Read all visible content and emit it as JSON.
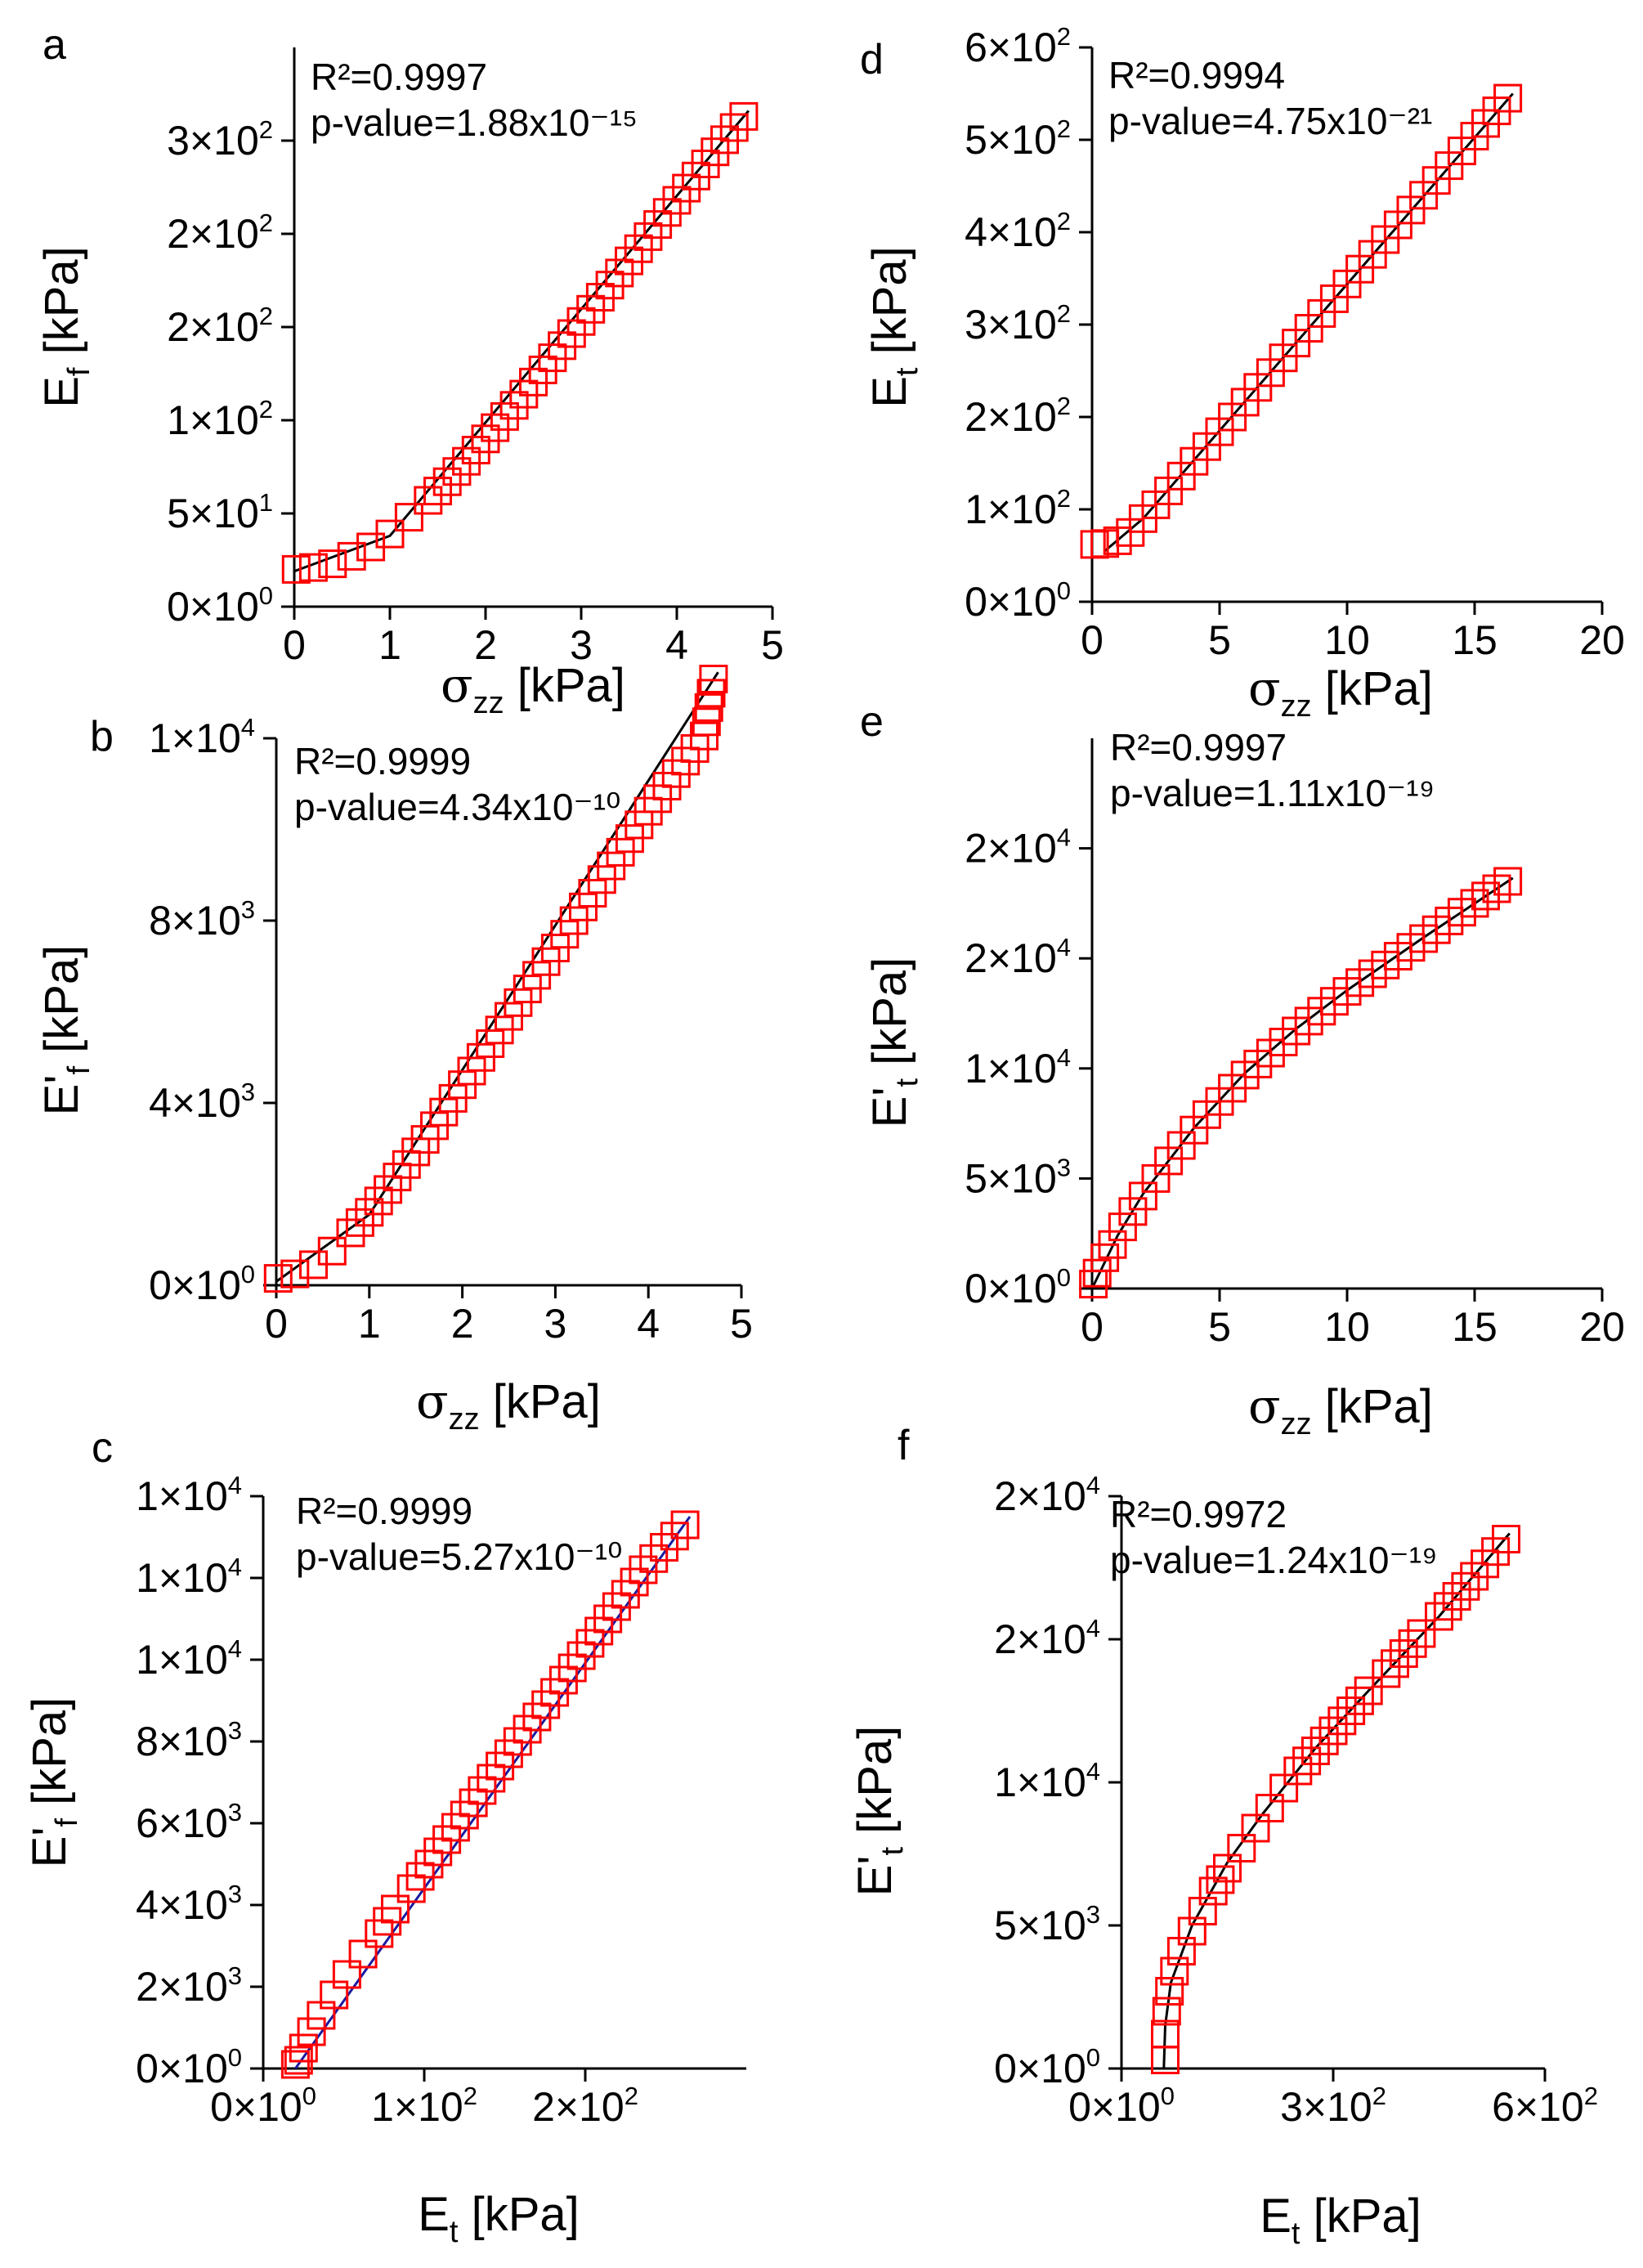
{
  "chart_data": [
    {
      "panel": "a",
      "type": "scatter",
      "xlabel": {
        "main": "σ",
        "sub": "zz",
        "unit": " [kPa]"
      },
      "ylabel": {
        "main": "E",
        "sub": "f",
        "unit": " [kPa]"
      },
      "xlim": [
        0,
        5
      ],
      "ylim": [
        0,
        300
      ],
      "xticks": [
        {
          "v": 0,
          "t": "0"
        },
        {
          "v": 1,
          "t": "1"
        },
        {
          "v": 2,
          "t": "2"
        },
        {
          "v": 3,
          "t": "3"
        },
        {
          "v": 4,
          "t": "4"
        },
        {
          "v": 5,
          "t": "5"
        }
      ],
      "yticks": [
        {
          "v": 0,
          "m": "0×10",
          "e": "0"
        },
        {
          "v": 50,
          "m": "5×10",
          "e": "1"
        },
        {
          "v": 100,
          "m": "1×10",
          "e": "2"
        },
        {
          "v": 150,
          "m": "2×10",
          "e": "2"
        },
        {
          "v": 200,
          "m": "2×10",
          "e": "2"
        },
        {
          "v": 250,
          "m": "3×10",
          "e": "2"
        }
      ],
      "r2": "R²=0.9997",
      "pvalue": "p-value=1.88x10⁻¹⁵",
      "x": [
        0.02,
        0.2,
        0.4,
        0.6,
        0.8,
        1.0,
        1.2,
        1.4,
        1.6,
        1.8,
        2.0,
        2.2,
        2.4,
        2.6,
        2.8,
        3.0,
        3.2,
        3.4,
        3.6,
        3.8,
        4.0,
        4.2,
        4.4,
        4.6,
        4.7
      ],
      "y": [
        20,
        21,
        23,
        27,
        32,
        39,
        48,
        57,
        67,
        78,
        90,
        102,
        114,
        127,
        140,
        153,
        166,
        179,
        192,
        205,
        218,
        231,
        244,
        257,
        263
      ],
      "fit": [
        [
          0,
          19
        ],
        [
          1,
          38
        ],
        [
          4.75,
          266
        ]
      ],
      "fit_color": "#000000"
    },
    {
      "panel": "b",
      "type": "scatter",
      "xlabel": {
        "main": "σ",
        "sub": "zz",
        "unit": " [kPa]"
      },
      "ylabel": {
        "main": "E'",
        "sub": "f",
        "unit": " [kPa]"
      },
      "xlim": [
        0,
        5
      ],
      "ylim": [
        0,
        12000
      ],
      "xticks": [
        {
          "v": 0,
          "t": "0"
        },
        {
          "v": 1,
          "t": "1"
        },
        {
          "v": 2,
          "t": "2"
        },
        {
          "v": 3,
          "t": "3"
        },
        {
          "v": 4,
          "t": "4"
        },
        {
          "v": 5,
          "t": "5"
        }
      ],
      "yticks": [
        {
          "v": 0,
          "m": "0×10",
          "e": "0"
        },
        {
          "v": 4000,
          "m": "4×10",
          "e": "3"
        },
        {
          "v": 8000,
          "m": "8×10",
          "e": "3"
        },
        {
          "v": 12000,
          "m": "1×10",
          "e": "4"
        }
      ],
      "r2": "R²=0.9999",
      "pvalue": "p-value=4.34x10⁻¹⁰",
      "x": [
        0.02,
        0.2,
        0.4,
        0.6,
        0.8,
        1.0,
        1.2,
        1.4,
        1.6,
        1.8,
        2.0,
        2.2,
        2.4,
        2.6,
        2.8,
        3.0,
        3.2,
        3.4,
        3.6,
        3.8,
        4.0,
        4.2,
        4.4,
        4.6,
        4.7
      ],
      "y": [
        150,
        250,
        450,
        750,
        1150,
        1600,
        2100,
        2650,
        3200,
        3800,
        4400,
        5000,
        5600,
        6200,
        6800,
        7400,
        8000,
        8600,
        9200,
        9800,
        10400,
        10950,
        11500,
        12050,
        13300
      ],
      "fit": [
        [
          0,
          80
        ],
        [
          1,
          1550
        ],
        [
          4.75,
          13450
        ]
      ],
      "fit_color": "#000000"
    },
    {
      "panel": "c",
      "type": "scatter",
      "xlabel": {
        "main": "E",
        "sub": "t",
        "unit": " [kPa]"
      },
      "ylabel": {
        "main": "E'",
        "sub": "f",
        "unit": " [kPa]"
      },
      "xlim": [
        0,
        300
      ],
      "ylim": [
        0,
        14000
      ],
      "xticks": [
        {
          "v": 0,
          "m": "0×10",
          "e": "0"
        },
        {
          "v": 100,
          "m": "1×10",
          "e": "2"
        },
        {
          "v": 200,
          "m": "2×10",
          "e": "2"
        }
      ],
      "yticks": [
        {
          "v": 0,
          "m": "0×10",
          "e": "0"
        },
        {
          "v": 2000,
          "m": "2×10",
          "e": "3"
        },
        {
          "v": 4000,
          "m": "4×10",
          "e": "3"
        },
        {
          "v": 6000,
          "m": "6×10",
          "e": "3"
        },
        {
          "v": 8000,
          "m": "8×10",
          "e": "3"
        },
        {
          "v": 10000,
          "m": "1×10",
          "e": "4"
        },
        {
          "v": 12000,
          "m": "1×10",
          "e": "4"
        },
        {
          "v": 14000,
          "m": "1×10",
          "e": "4"
        }
      ],
      "r2": "R²=0.9999",
      "pvalue": "p-value=5.27x10⁻¹⁰",
      "x": [
        20,
        22,
        25,
        30,
        36,
        44,
        52,
        62,
        72,
        82,
        92,
        103,
        114,
        125,
        136,
        147,
        158,
        170,
        181,
        192,
        203,
        214,
        225,
        236,
        262
      ],
      "y": [
        100,
        200,
        500,
        900,
        1300,
        1800,
        2300,
        2800,
        3300,
        3900,
        4400,
        5000,
        5600,
        6200,
        6800,
        7400,
        8000,
        8600,
        9200,
        9800,
        10400,
        11000,
        11600,
        12200,
        13300
      ],
      "fit": [
        [
          20,
          0
        ],
        [
          265,
          13500
        ]
      ],
      "fit_color": "#1a1aa0"
    },
    {
      "panel": "d",
      "type": "scatter",
      "xlabel": {
        "main": "σ",
        "sub": "zz",
        "unit": " [kPa]"
      },
      "ylabel": {
        "main": "E",
        "sub": "t",
        "unit": " [kPa]"
      },
      "xlim": [
        0,
        20
      ],
      "ylim": [
        0,
        600
      ],
      "xticks": [
        {
          "v": 0,
          "t": "0"
        },
        {
          "v": 5,
          "t": "5"
        },
        {
          "v": 10,
          "t": "10"
        },
        {
          "v": 15,
          "t": "15"
        },
        {
          "v": 20,
          "t": "20"
        }
      ],
      "yticks": [
        {
          "v": 0,
          "m": "0×10",
          "e": "0"
        },
        {
          "v": 100,
          "m": "1×10",
          "e": "2"
        },
        {
          "v": 200,
          "m": "2×10",
          "e": "2"
        },
        {
          "v": 300,
          "m": "3×10",
          "e": "2"
        },
        {
          "v": 400,
          "m": "4×10",
          "e": "2"
        },
        {
          "v": 500,
          "m": "5×10",
          "e": "2"
        },
        {
          "v": 600,
          "m": "6×10",
          "e": "2"
        }
      ],
      "r2": "R²=0.9994",
      "pvalue": "p-value=4.75x10⁻²¹",
      "x": [
        0.1,
        0.5,
        1.0,
        1.5,
        2.0,
        2.5,
        3.0,
        3.5,
        4.0,
        4.5,
        5.0,
        5.5,
        6.0,
        6.5,
        7.0,
        7.5,
        8.0,
        9.0,
        10.0,
        11.0,
        12.0,
        13.0,
        14.0,
        15.0,
        16.3
      ],
      "y": [
        62,
        63,
        66,
        75,
        90,
        105,
        120,
        136,
        152,
        168,
        184,
        200,
        216,
        232,
        248,
        264,
        280,
        312,
        344,
        376,
        408,
        440,
        472,
        504,
        545
      ],
      "fit": [
        [
          0.5,
          55
        ],
        [
          2,
          90
        ],
        [
          16.5,
          550
        ]
      ],
      "fit_color": "#000000"
    },
    {
      "panel": "e",
      "type": "scatter",
      "xlabel": {
        "main": "σ",
        "sub": "zz",
        "unit": " [kPa]"
      },
      "ylabel": {
        "main": "E'",
        "sub": "t",
        "unit": " [kPa]"
      },
      "xlim": [
        0,
        20
      ],
      "ylim": [
        0,
        25000
      ],
      "xticks": [
        {
          "v": 0,
          "t": "0"
        },
        {
          "v": 5,
          "t": "5"
        },
        {
          "v": 10,
          "t": "10"
        },
        {
          "v": 15,
          "t": "15"
        },
        {
          "v": 20,
          "t": "20"
        }
      ],
      "yticks": [
        {
          "v": 0,
          "m": "0×10",
          "e": "0"
        },
        {
          "v": 5000,
          "m": "5×10",
          "e": "3"
        },
        {
          "v": 10000,
          "m": "1×10",
          "e": "4"
        },
        {
          "v": 15000,
          "m": "2×10",
          "e": "4"
        },
        {
          "v": 20000,
          "m": "2×10",
          "e": "4"
        }
      ],
      "r2": "R²=0.9997",
      "pvalue": "p-value=1.11x10⁻¹⁹",
      "x": [
        0.05,
        0.2,
        0.5,
        0.8,
        1.2,
        1.6,
        2.0,
        2.5,
        3.0,
        3.5,
        4.0,
        4.5,
        5.0,
        5.5,
        6.0,
        6.5,
        7.0,
        8.0,
        9.0,
        10.0,
        11.0,
        12.0,
        13.0,
        14.0,
        15.0,
        16.3
      ],
      "y": [
        200,
        700,
        1400,
        2000,
        2800,
        3500,
        4200,
        5000,
        5800,
        6500,
        7200,
        7900,
        8500,
        9100,
        9700,
        10200,
        10700,
        11700,
        12600,
        13500,
        14300,
        15100,
        15900,
        16700,
        17500,
        18500
      ],
      "fit": [
        [
          0,
          0
        ],
        [
          1,
          2400
        ],
        [
          2,
          4300
        ],
        [
          4,
          7300
        ],
        [
          6,
          9800
        ],
        [
          8,
          11800
        ],
        [
          10,
          13550
        ],
        [
          13,
          15950
        ],
        [
          16.5,
          18650
        ]
      ],
      "fit_color": "#000000"
    },
    {
      "panel": "f",
      "type": "scatter",
      "xlabel": {
        "main": "E",
        "sub": "t",
        "unit": " [kPa]"
      },
      "ylabel": {
        "main": "E'",
        "sub": "t",
        "unit": " [kPa]"
      },
      "xlim": [
        0,
        600
      ],
      "ylim": [
        0,
        20000
      ],
      "xticks": [
        {
          "v": 0,
          "m": "0×10",
          "e": "0"
        },
        {
          "v": 300,
          "m": "3×10",
          "e": "2"
        },
        {
          "v": 600,
          "m": "6×10",
          "e": "2"
        }
      ],
      "yticks": [
        {
          "v": 0,
          "m": "0×10",
          "e": "0"
        },
        {
          "v": 5000,
          "m": "5×10",
          "e": "3"
        },
        {
          "v": 10000,
          "m": "1×10",
          "e": "4"
        },
        {
          "v": 15000,
          "m": "2×10",
          "e": "4"
        },
        {
          "v": 20000,
          "m": "2×10",
          "e": "4"
        }
      ],
      "r2": "R²=0.9972",
      "pvalue": "p-value=1.24x10⁻¹⁹",
      "x": [
        62,
        62,
        64,
        68,
        75,
        85,
        100,
        115,
        130,
        150,
        170,
        190,
        210,
        230,
        250,
        275,
        300,
        325,
        350,
        375,
        400,
        425,
        450,
        475,
        500,
        545
      ],
      "y": [
        300,
        1200,
        2000,
        2700,
        3400,
        4100,
        4800,
        5500,
        6200,
        7000,
        7700,
        8400,
        9100,
        9800,
        10400,
        11100,
        11800,
        12500,
        13200,
        13800,
        14500,
        15200,
        15800,
        16500,
        17200,
        18500
      ],
      "fit": [
        [
          60,
          0
        ],
        [
          62,
          1500
        ],
        [
          70,
          3000
        ],
        [
          100,
          5000
        ],
        [
          150,
          7200
        ],
        [
          200,
          8900
        ],
        [
          275,
          11200
        ],
        [
          350,
          13200
        ],
        [
          450,
          15800
        ],
        [
          550,
          18700
        ]
      ],
      "fit_color": "#000000"
    }
  ]
}
